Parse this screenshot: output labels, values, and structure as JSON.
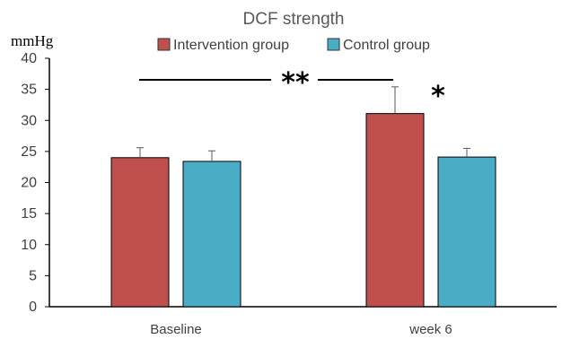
{
  "chart_data": {
    "type": "bar",
    "title": "DCF strength",
    "ylabel": "mmHg",
    "xlabel": "",
    "categories": [
      "Baseline",
      "week 6"
    ],
    "series": [
      {
        "name": "Intervention group",
        "color": "#c0504d",
        "values": [
          24.0,
          31.1
        ],
        "error": [
          1.6,
          4.3
        ]
      },
      {
        "name": "Control group",
        "color": "#4bacc6",
        "values": [
          23.4,
          24.1
        ],
        "error": [
          1.7,
          1.4
        ]
      }
    ],
    "ylim": [
      0,
      40
    ],
    "yticks": [
      0,
      5,
      10,
      15,
      20,
      25,
      30,
      35,
      40
    ],
    "grid": false,
    "legend_position": "top",
    "annotations": {
      "between_groups": "**",
      "week6_intervention": "*"
    }
  }
}
